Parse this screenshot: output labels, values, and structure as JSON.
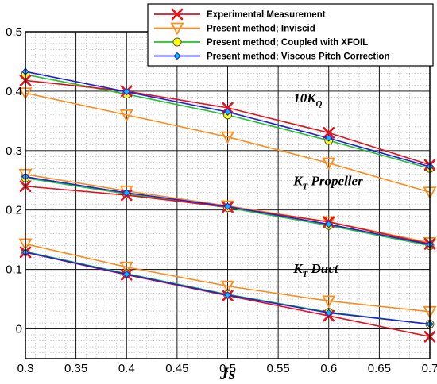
{
  "chart_data": {
    "type": "line",
    "xlabel": "Js",
    "ylabel": "",
    "xlim": [
      0.3,
      0.7
    ],
    "ylim": [
      -0.05,
      0.5
    ],
    "x_ticks": [
      "0.3",
      "0.35",
      "0.4",
      "0.45",
      "0.5",
      "0.55",
      "0.6",
      "0.65",
      "0.7"
    ],
    "y_ticks": [
      "0",
      "0.1",
      "0.2",
      "0.3",
      "0.4",
      "0.5"
    ],
    "grid": true,
    "legend_position": "top-right",
    "x": [
      0.3,
      0.4,
      0.5,
      0.6,
      0.7
    ],
    "groups": [
      {
        "label": "10K",
        "label_sub": "Q",
        "series": [
          {
            "name": "Experimental Measurement",
            "color": "#e8101a",
            "marker": "x-icon",
            "values": [
              0.418,
              0.4,
              0.372,
              0.33,
              0.276
            ]
          },
          {
            "name": "Present method; Inviscid",
            "color": "#ff8c1a",
            "marker": "triangle-down-icon",
            "values": [
              0.397,
              0.36,
              0.323,
              0.279,
              0.23
            ]
          },
          {
            "name": "Present method; Coupled with XFOIL",
            "color": "#22c32a",
            "marker": "circle-icon",
            "values": [
              0.428,
              0.395,
              0.36,
              0.317,
              0.27
            ]
          },
          {
            "name": "Present method; Viscous Pitch Correction",
            "color": "#2020e0",
            "marker": "diamond-icon",
            "values": [
              0.433,
              0.399,
              0.365,
              0.321,
              0.273
            ]
          }
        ]
      },
      {
        "label": "K",
        "label_sub": "T",
        "label_rest": " Propeller",
        "series": [
          {
            "name": "Experimental Measurement",
            "color": "#e8101a",
            "marker": "x-icon",
            "values": [
              0.24,
              0.225,
              0.205,
              0.18,
              0.143
            ]
          },
          {
            "name": "Present method; Inviscid",
            "color": "#ff8c1a",
            "marker": "triangle-down-icon",
            "values": [
              0.26,
              0.232,
              0.207,
              0.18,
              0.145
            ]
          },
          {
            "name": "Present method; Coupled with XFOIL",
            "color": "#22c32a",
            "marker": "circle-icon",
            "values": [
              0.254,
              0.227,
              0.204,
              0.174,
              0.14
            ]
          },
          {
            "name": "Present method; Viscous Pitch Correction",
            "color": "#2020e0",
            "marker": "diamond-icon",
            "values": [
              0.256,
              0.229,
              0.206,
              0.176,
              0.142
            ]
          }
        ]
      },
      {
        "label": "K",
        "label_sub": "T",
        "label_rest": " Duct",
        "series": [
          {
            "name": "Experimental Measurement",
            "color": "#e8101a",
            "marker": "x-icon",
            "values": [
              0.129,
              0.091,
              0.056,
              0.022,
              -0.013
            ]
          },
          {
            "name": "Present method; Inviscid",
            "color": "#ff8c1a",
            "marker": "triangle-down-icon",
            "values": [
              0.143,
              0.104,
              0.072,
              0.047,
              0.029
            ]
          },
          {
            "name": "Present method; Coupled with XFOIL",
            "color": "#22c32a",
            "marker": "circle-icon",
            "values": [
              0.13,
              0.093,
              0.058,
              0.028,
              0.008
            ]
          },
          {
            "name": "Present method; Viscous Pitch Correction",
            "color": "#2020e0",
            "marker": "diamond-icon",
            "values": [
              0.129,
              0.092,
              0.057,
              0.027,
              0.008
            ]
          }
        ]
      }
    ],
    "legend": [
      {
        "name": "Experimental Measurement",
        "color": "#e8101a",
        "marker": "x-icon"
      },
      {
        "name": "Present method; Inviscid",
        "color": "#ff8c1a",
        "marker": "triangle-down-icon"
      },
      {
        "name": "Present method; Coupled with XFOIL",
        "color": "#22c32a",
        "marker": "circle-icon"
      },
      {
        "name": "Present method; Viscous Pitch Correction",
        "color": "#2020e0",
        "marker": "diamond-icon"
      }
    ]
  }
}
